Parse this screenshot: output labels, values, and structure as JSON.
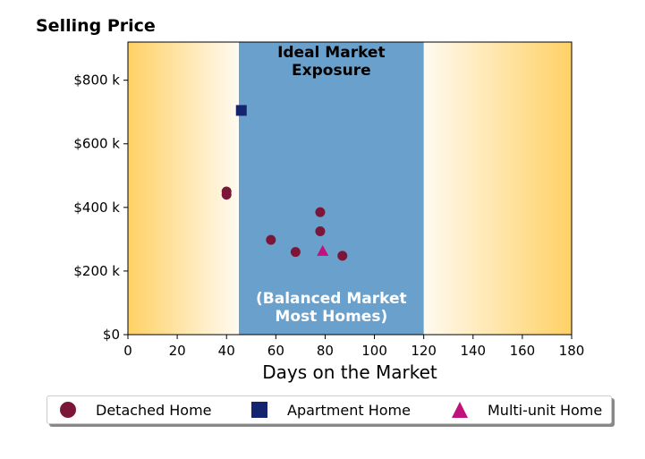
{
  "chart_data": {
    "type": "scatter",
    "title": "Selling Price",
    "xlabel": "Days on the Market",
    "ylabel": "",
    "xlim": [
      0,
      180
    ],
    "ylim": [
      0,
      920000
    ],
    "x_ticks": [
      0,
      20,
      40,
      60,
      80,
      100,
      120,
      140,
      160,
      180
    ],
    "y_ticks": [
      0,
      200000,
      400000,
      600000,
      800000
    ],
    "y_tick_labels": [
      "$0",
      "$200 k",
      "$400 k",
      "$600 k",
      "$800 k"
    ],
    "grid": false,
    "legend_position": "bottom",
    "regions": [
      {
        "label": "Ideal Market\nExposure",
        "x_start": 45,
        "x_end": 120,
        "color": "#6aa0cc"
      },
      {
        "label": "(Balanced Market\nMost Homes)",
        "x_start": 45,
        "x_end": 120,
        "color": "#ffffff"
      }
    ],
    "background_gradient": {
      "edge_color": "#ffd166",
      "center_color": "#fffaf0"
    },
    "series": [
      {
        "name": "Detached Home",
        "marker": "circle",
        "color": "#7b1638",
        "points": [
          {
            "x": 40,
            "y": 450000
          },
          {
            "x": 40,
            "y": 440000
          },
          {
            "x": 58,
            "y": 298000
          },
          {
            "x": 68,
            "y": 260000
          },
          {
            "x": 78,
            "y": 385000
          },
          {
            "x": 78,
            "y": 325000
          },
          {
            "x": 87,
            "y": 248000
          }
        ]
      },
      {
        "name": "Apartment Home",
        "marker": "square",
        "color": "#14246e",
        "points": [
          {
            "x": 46,
            "y": 705000
          }
        ]
      },
      {
        "name": "Multi-unit Home",
        "marker": "triangle",
        "color": "#c0127a",
        "points": [
          {
            "x": 79,
            "y": 262000
          }
        ]
      }
    ]
  }
}
